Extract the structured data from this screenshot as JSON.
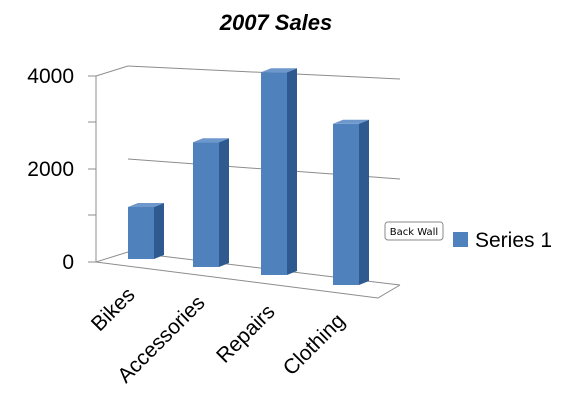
{
  "chart_data": {
    "type": "bar",
    "title": "2007 Sales",
    "categories": [
      "Bikes",
      "Accessories",
      "Repairs",
      "Clothing"
    ],
    "series": [
      {
        "name": "Series 1",
        "values": [
          1000,
          2400,
          3900,
          3100
        ]
      }
    ],
    "ylim": [
      0,
      4000
    ],
    "yticks": [
      "0",
      "2000",
      "4000"
    ],
    "grid": true,
    "legend": "right",
    "style": "3d-column",
    "colors": {
      "bar_front": "#4f81bd",
      "bar_side": "#2f5a8f",
      "bar_top": "#6e97cc"
    }
  },
  "tooltip": {
    "label": "Back Wall"
  }
}
